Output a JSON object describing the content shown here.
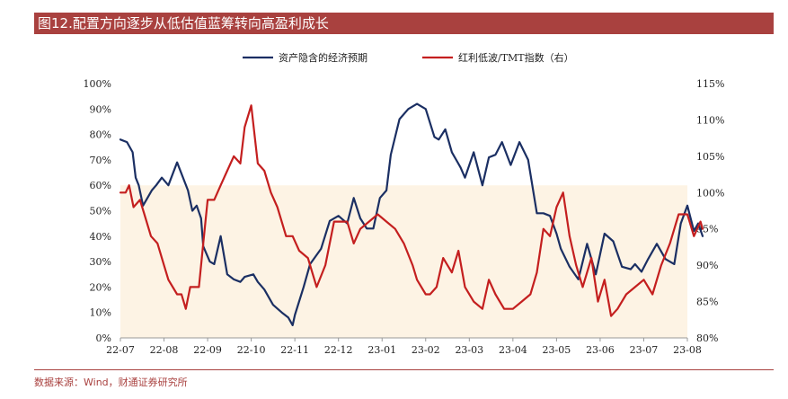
{
  "title": "图12.配置方向逐步从低估值蓝筹转向高盈利成长",
  "source": "数据来源：Wind，财通证券研究所",
  "colors": {
    "accent": "#a9413f",
    "series1": "#1b2f63",
    "series2": "#c41f1f",
    "shade": "#fdf3e4"
  },
  "chart_data": {
    "type": "line",
    "legend_position": "top-center",
    "grid": false,
    "x_tick_labels": [
      "22-07",
      "22-08",
      "22-09",
      "22-10",
      "22-11",
      "22-12",
      "23-01",
      "23-02",
      "23-03",
      "23-04",
      "23-05",
      "23-06",
      "23-07",
      "23-08"
    ],
    "y_left": {
      "min": 0,
      "max": 100,
      "step": 10,
      "tick_labels": [
        "0%",
        "10%",
        "20%",
        "30%",
        "40%",
        "50%",
        "60%",
        "70%",
        "80%",
        "90%",
        "100%"
      ]
    },
    "y_right": {
      "min": 80,
      "max": 115,
      "step": 5,
      "tick_labels": [
        "80%",
        "85%",
        "90%",
        "95%",
        "100%",
        "105%",
        "110%",
        "115%"
      ]
    },
    "shaded_band": {
      "axis": "left",
      "from": 0,
      "to": 60
    },
    "series": [
      {
        "name": "资产隐含的经济预期",
        "axis": "left",
        "x": [
          0,
          0.15,
          0.28,
          0.35,
          0.42,
          0.52,
          0.72,
          0.82,
          0.95,
          1.1,
          1.3,
          1.55,
          1.65,
          1.75,
          1.85,
          1.9,
          2.05,
          2.15,
          2.3,
          2.45,
          2.6,
          2.75,
          2.85,
          3.05,
          3.15,
          3.3,
          3.5,
          3.7,
          3.85,
          3.95,
          4.0,
          4.2,
          4.35,
          4.6,
          4.8,
          5.0,
          5.2,
          5.35,
          5.5,
          5.65,
          5.8,
          5.95,
          6.1,
          6.2,
          6.4,
          6.6,
          6.8,
          7.0,
          7.2,
          7.3,
          7.45,
          7.6,
          7.8,
          7.9,
          8.1,
          8.3,
          8.45,
          8.6,
          8.75,
          8.95,
          9.15,
          9.35,
          9.55,
          9.7,
          9.85,
          10.0,
          10.1,
          10.3,
          10.5,
          10.7,
          10.9,
          11.1,
          11.3,
          11.5,
          11.7,
          11.8,
          11.95,
          12.1,
          12.3,
          12.5,
          12.7,
          12.85,
          13.0,
          13.15,
          13.25,
          13.35
        ],
        "y": [
          78,
          77,
          73,
          63,
          60,
          52,
          58,
          60,
          63,
          60,
          69,
          58,
          50,
          52,
          47,
          36,
          30,
          29,
          40,
          25,
          23,
          22,
          24,
          25,
          22,
          19,
          13,
          10,
          8,
          5,
          9,
          20,
          29,
          35,
          46,
          48,
          45,
          55,
          47,
          43,
          43,
          55,
          58,
          72,
          86,
          90,
          92,
          90,
          79,
          78,
          82,
          73,
          67,
          63,
          73,
          60,
          71,
          72,
          77,
          68,
          77,
          70,
          49,
          49,
          48,
          41,
          35,
          28,
          23,
          37,
          25,
          41,
          38,
          28,
          27,
          29,
          26,
          31,
          37,
          31,
          29,
          45,
          52,
          42,
          45,
          40
        ]
      },
      {
        "name": "红利低波/TMT指数（右）",
        "axis": "right",
        "x": [
          0,
          0.12,
          0.2,
          0.3,
          0.45,
          0.55,
          0.7,
          0.85,
          1.0,
          1.1,
          1.3,
          1.4,
          1.5,
          1.6,
          1.8,
          1.9,
          2.0,
          2.15,
          2.3,
          2.45,
          2.6,
          2.75,
          2.85,
          3.0,
          3.15,
          3.3,
          3.45,
          3.6,
          3.8,
          3.95,
          4.1,
          4.3,
          4.5,
          4.7,
          4.9,
          5.05,
          5.2,
          5.35,
          5.5,
          5.7,
          5.9,
          6.1,
          6.3,
          6.5,
          6.7,
          6.8,
          7.0,
          7.1,
          7.25,
          7.4,
          7.6,
          7.75,
          7.9,
          8.1,
          8.3,
          8.45,
          8.6,
          8.8,
          9.0,
          9.2,
          9.4,
          9.55,
          9.7,
          9.85,
          10.0,
          10.15,
          10.3,
          10.45,
          10.6,
          10.8,
          10.95,
          11.1,
          11.25,
          11.4,
          11.6,
          11.8,
          12.0,
          12.2,
          12.4,
          12.6,
          12.8,
          13.0,
          13.15,
          13.3,
          13.35
        ],
        "y": [
          100,
          100,
          101,
          98,
          99,
          97,
          94,
          93,
          90,
          88,
          86,
          86,
          84,
          87,
          87,
          93,
          99,
          99,
          101,
          103,
          105,
          104,
          109,
          112,
          104,
          103,
          100,
          98,
          94,
          94,
          92,
          91,
          87,
          90,
          96,
          96,
          96,
          93,
          95,
          96,
          97,
          96,
          95,
          93,
          90,
          88,
          86,
          86,
          87,
          91,
          89,
          92,
          87,
          85,
          84,
          88,
          86,
          84,
          84,
          85,
          86,
          89,
          95,
          94,
          98,
          100,
          94,
          90,
          87,
          91,
          85,
          88,
          83,
          84,
          86,
          87,
          88,
          86,
          90,
          93,
          97,
          97,
          94,
          96,
          95
        ]
      }
    ]
  }
}
